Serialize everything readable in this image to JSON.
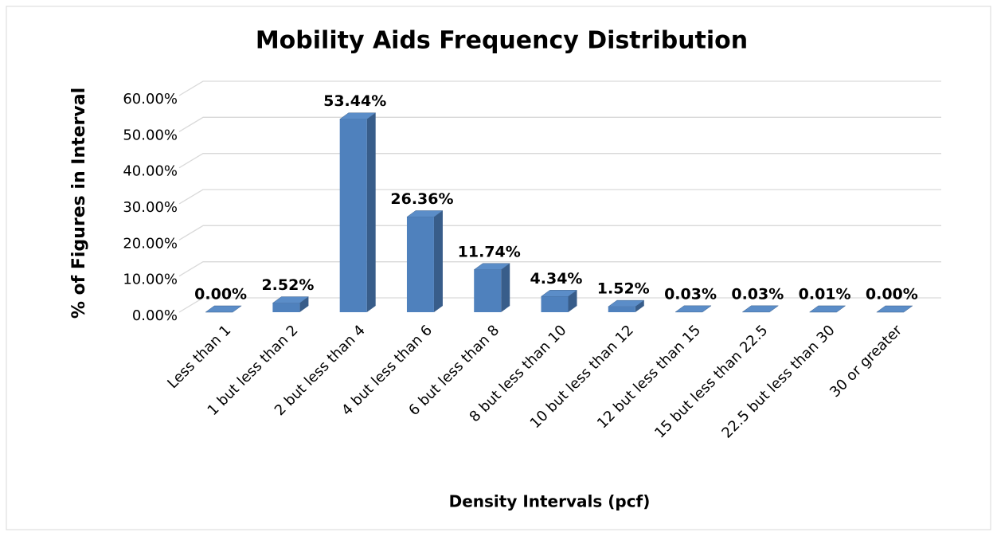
{
  "chart_data": {
    "type": "bar3d",
    "title": "Mobility Aids Frequency Distribution",
    "x_label": "Density Intervals (pcf)",
    "y_label": "% of Figures in Interval",
    "categories": [
      "Less than 1",
      "1 but less than 2",
      "2 but less than 4",
      "4 but less than 6",
      "6 but less than 8",
      "8 but less than 10",
      "10 but less than 12",
      "12 but less than 15",
      "15 but less than 22.5",
      "22.5 but less than 30",
      "30 or greater"
    ],
    "values": [
      0,
      2.52,
      53.44,
      26.36,
      11.74,
      4.34,
      1.52,
      0.03,
      0.03,
      0.01,
      0
    ],
    "value_labels": [
      "0.00%",
      "2.52%",
      "53.44%",
      "26.36%",
      "11.74%",
      "4.34%",
      "1.52%",
      "0.03%",
      "0.03%",
      "0.01%",
      "0.00%"
    ],
    "color": "#4f81bd",
    "ylim": [
      0,
      60
    ],
    "yticks": [
      {
        "value": 0,
        "label": "0.00%"
      },
      {
        "value": 10,
        "label": "10.00%"
      },
      {
        "value": 20,
        "label": "20.00%"
      },
      {
        "value": 30,
        "label": "30.00%"
      },
      {
        "value": 40,
        "label": "40.00%"
      },
      {
        "value": 50,
        "label": "50.00%"
      },
      {
        "value": 60,
        "label": "60.00%"
      }
    ],
    "grid": true
  }
}
